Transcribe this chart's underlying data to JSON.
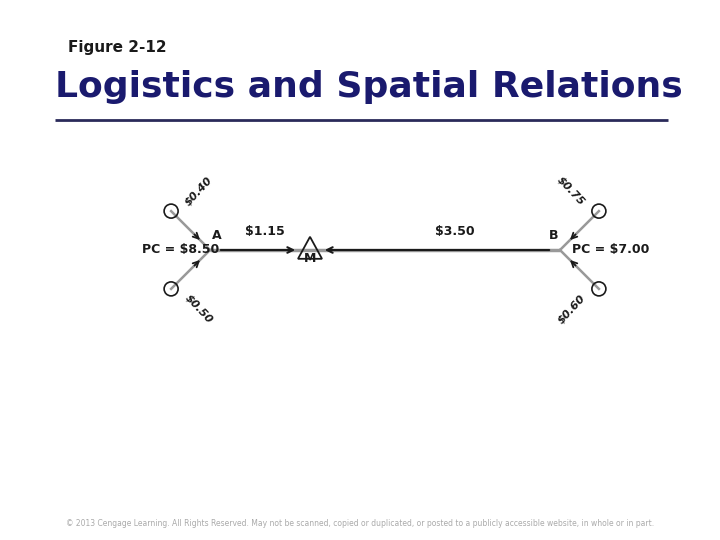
{
  "bg_color": "#ffffff",
  "title_label": "Figure 2-12",
  "title_color": "#1a1a1a",
  "subtitle": "Logistics and Spatial Relations",
  "subtitle_color": "#1a1a6e",
  "line_color": "#2a2a5a",
  "diagram_line_color": "#999999",
  "arrow_color": "#1a1a1a",
  "text_color": "#1a1a1a",
  "pc_left_label": "PC = $8.50",
  "pc_right_label": "PC = $7.00",
  "cost_A_up": "$0.40",
  "cost_A_down": "$0.50",
  "cost_AB": "$1.15",
  "cost_MB": "$3.50",
  "cost_B_up": "$0.75",
  "cost_B_down": "$0.60",
  "label_A": "A",
  "label_M": "M",
  "label_B": "B",
  "footer": "© 2013 Cengage Learning. All Rights Reserved. May not be scanned, copied or duplicated, or posted to a publicly accessible website, in whole or in part."
}
